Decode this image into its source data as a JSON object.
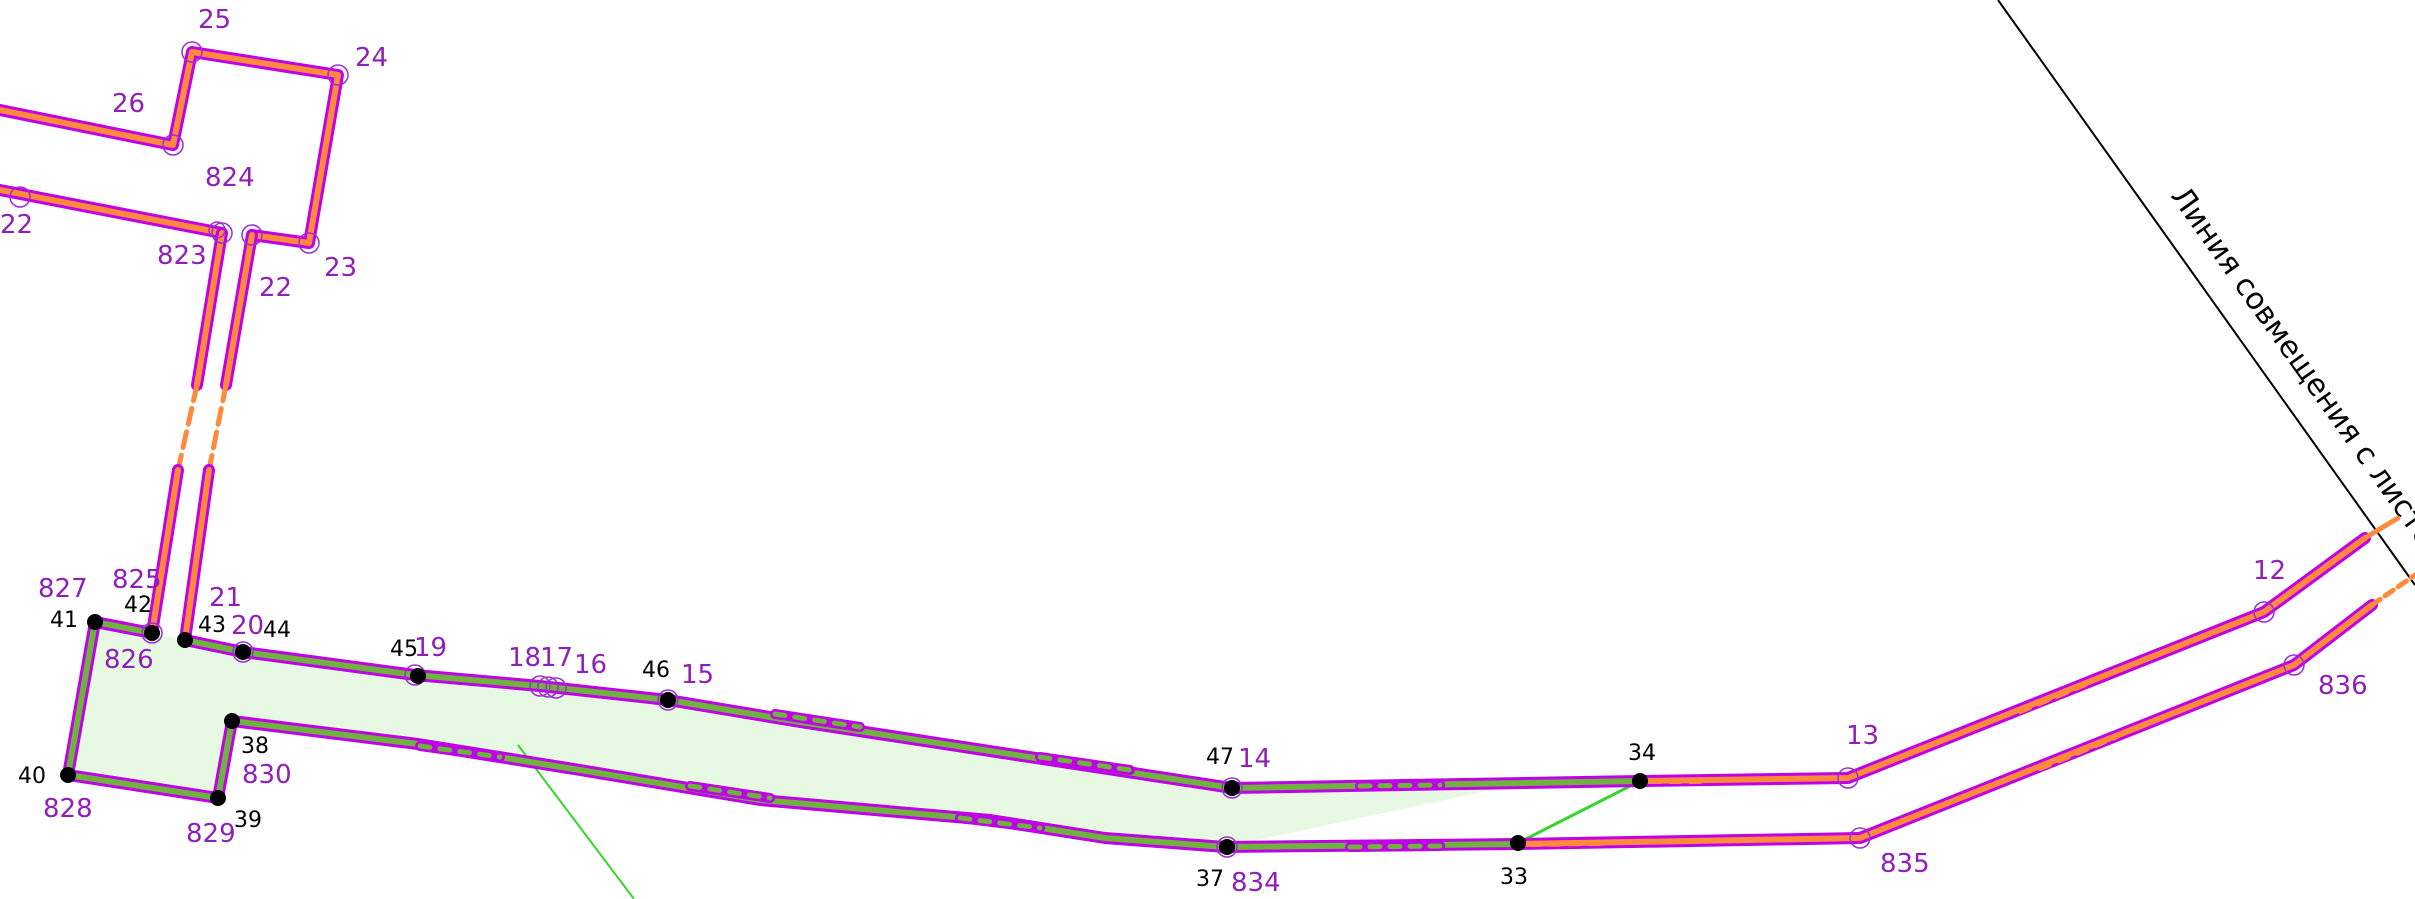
{
  "colors": {
    "boundary_outline": "#c000e8",
    "boundary_fill_orange": "#ff8a3c",
    "boundary_fill_green": "#6fb33e",
    "area_fill": "#e8f9e3",
    "guide_line": "#34d62a",
    "point_label": "#8f1fb8",
    "node_label": "#000000"
  },
  "match_line": {
    "label": "Линия совмещения с листом"
  },
  "purple_points": [
    {
      "id": "p25",
      "label": "25"
    },
    {
      "id": "p24",
      "label": "24"
    },
    {
      "id": "p26",
      "label": "26"
    },
    {
      "id": "p824",
      "label": "824"
    },
    {
      "id": "p823",
      "label": "823"
    },
    {
      "id": "p22a",
      "label": "22"
    },
    {
      "id": "p22b",
      "label": "22"
    },
    {
      "id": "p23",
      "label": "23"
    },
    {
      "id": "p827",
      "label": "827"
    },
    {
      "id": "p825",
      "label": "825"
    },
    {
      "id": "p21",
      "label": "21"
    },
    {
      "id": "p20",
      "label": "20"
    },
    {
      "id": "p826",
      "label": "826"
    },
    {
      "id": "p19",
      "label": "19"
    },
    {
      "id": "p18",
      "label": "18"
    },
    {
      "id": "p17",
      "label": "17"
    },
    {
      "id": "p16",
      "label": "16"
    },
    {
      "id": "p15",
      "label": "15"
    },
    {
      "id": "p830",
      "label": "830"
    },
    {
      "id": "p828",
      "label": "828"
    },
    {
      "id": "p829",
      "label": "829"
    },
    {
      "id": "p14",
      "label": "14"
    },
    {
      "id": "p834",
      "label": "834"
    },
    {
      "id": "p13",
      "label": "13"
    },
    {
      "id": "p835",
      "label": "835"
    },
    {
      "id": "p12",
      "label": "12"
    },
    {
      "id": "p836",
      "label": "836"
    }
  ],
  "black_points": [
    {
      "id": "n41",
      "label": "41"
    },
    {
      "id": "n42",
      "label": "42"
    },
    {
      "id": "n43",
      "label": "43"
    },
    {
      "id": "n44",
      "label": "44"
    },
    {
      "id": "n45",
      "label": "45"
    },
    {
      "id": "n46",
      "label": "46"
    },
    {
      "id": "n38",
      "label": "38"
    },
    {
      "id": "n40",
      "label": "40"
    },
    {
      "id": "n39",
      "label": "39"
    },
    {
      "id": "n47",
      "label": "47"
    },
    {
      "id": "n37",
      "label": "37"
    },
    {
      "id": "n34",
      "label": "34"
    },
    {
      "id": "n33",
      "label": "33"
    }
  ]
}
